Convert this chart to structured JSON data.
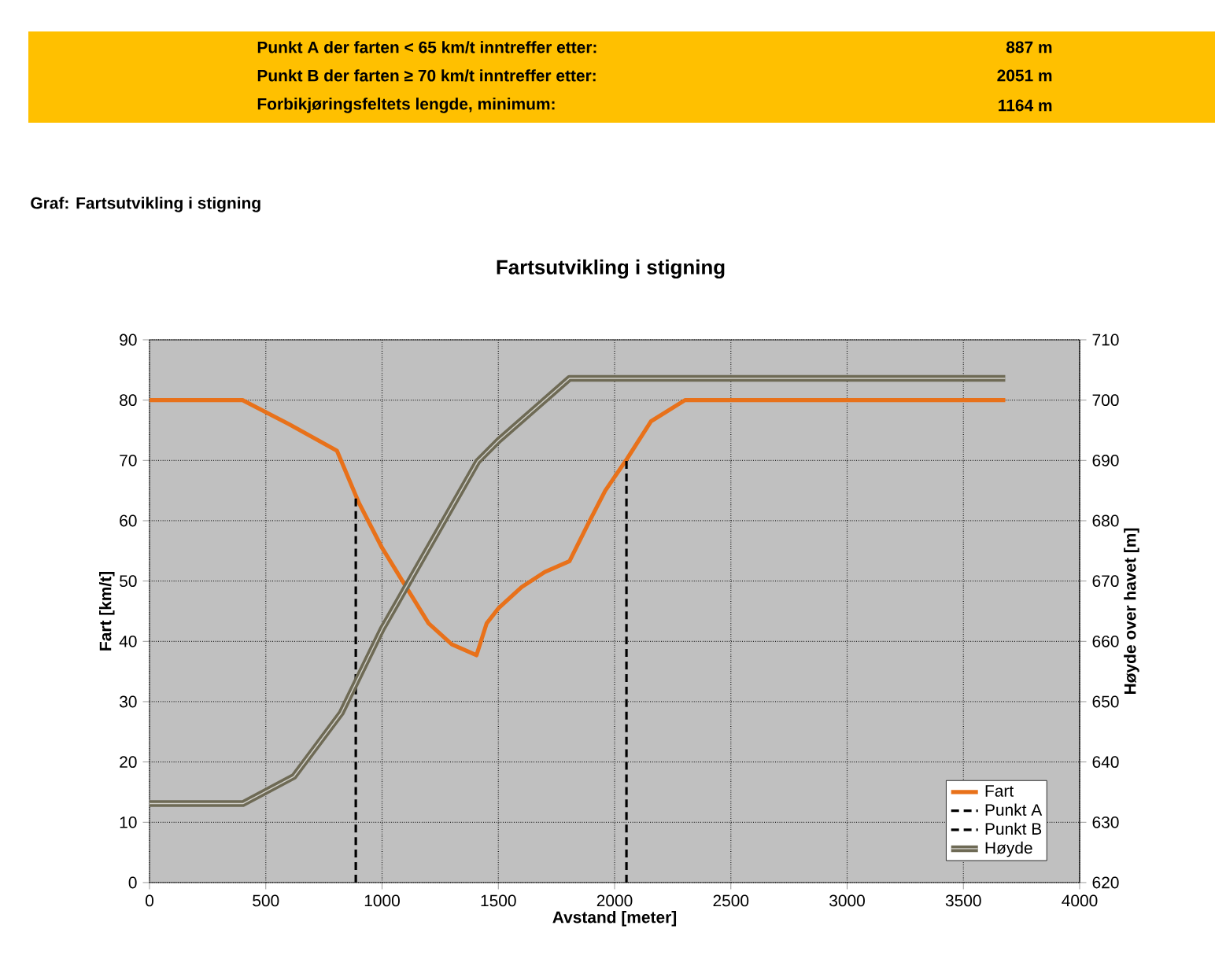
{
  "chart_data": {
    "type": "line",
    "title": "Fartsutvikling i stigning",
    "xlabel": "Avstand [meter]",
    "ylabel": "Fart [km/t]",
    "y2label": "Høyde over havet [m]",
    "annotations": [
      "Punkt A der farten < 65 km/t inntreffer etter:",
      "887 m",
      "Punkt B der farten ≥ 70 km/t inntreffer etter:",
      "2051 m",
      "Forbikjøringsfeltets lengde, minimum:",
      "1164 m",
      "Graf: Fartsutvikling i stigning"
    ],
    "series": [
      {
        "name": "Fart",
        "color": "#e8711a",
        "x": [
          0,
          400,
          600,
          806,
          900,
          1000,
          1083,
          1200,
          1300,
          1406,
          1450,
          1501,
          1600,
          1700,
          1806,
          1885,
          1960,
          2054,
          2157,
          2303,
          3680
        ],
        "values": [
          80,
          80,
          76,
          71.6,
          63,
          55.5,
          50.3,
          43,
          39.5,
          37.7,
          43,
          45.5,
          49,
          51.5,
          53.3,
          59.4,
          65,
          70.3,
          76.5,
          80,
          80
        ]
      },
      {
        "name": "Punkt A",
        "color": "#000000",
        "line_style": "dashed",
        "x": [
          887,
          887
        ],
        "values": [
          0,
          64
        ]
      },
      {
        "name": "Punkt B",
        "color": "#000000",
        "line_style": "dashed",
        "x": [
          2051,
          2051
        ],
        "values": [
          0,
          70
        ]
      },
      {
        "name": "Høyde",
        "color": "#6e6a55",
        "axis": "y2",
        "x": [
          0,
          402,
          621,
          824,
          1000,
          1411,
          1501,
          1806,
          3680
        ],
        "values": [
          633.1,
          633.1,
          637.6,
          648.1,
          662,
          689.8,
          693.3,
          703.6,
          703.6
        ]
      }
    ],
    "xlim": [
      0,
      4000
    ],
    "xticks": [
      0,
      500,
      1000,
      1500,
      2000,
      2500,
      3000,
      3500,
      4000
    ],
    "ylim": [
      0,
      90
    ],
    "yticks": [
      0,
      10,
      20,
      30,
      40,
      50,
      60,
      70,
      80,
      90
    ],
    "y2lim": [
      620,
      710
    ],
    "y2ticks": [
      620,
      630,
      640,
      650,
      660,
      670,
      680,
      690,
      700,
      710
    ],
    "grid": true,
    "legend": "bottom right",
    "marker": "none",
    "line_style": "solid"
  }
}
